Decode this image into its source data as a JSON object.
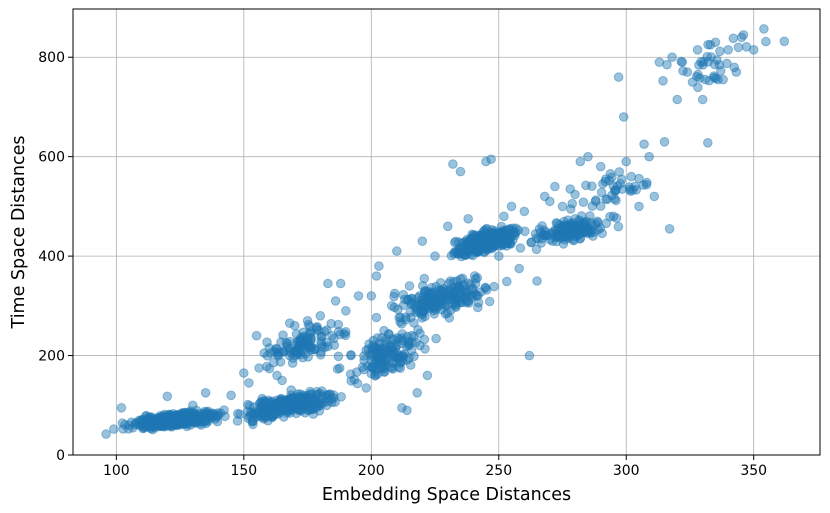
{
  "chart_data": {
    "type": "scatter",
    "title": "",
    "xlabel": "Embedding Space Distances",
    "ylabel": "Time Space Distances",
    "xlim": [
      83,
      376
    ],
    "ylim": [
      0,
      897
    ],
    "xticks": [
      "100",
      "150",
      "200",
      "250",
      "300",
      "350"
    ],
    "yticks": [
      "0",
      "200",
      "400",
      "600",
      "800"
    ],
    "grid": true,
    "legend": "none",
    "point_color": "#1f77b4",
    "point_alpha": 0.45,
    "clusters": [
      {
        "x_range": [
          96,
          150
        ],
        "y_range": [
          40,
          100
        ],
        "count": 420
      },
      {
        "x_range": [
          140,
          195
        ],
        "y_range": [
          50,
          150
        ],
        "count": 330
      },
      {
        "x_range": [
          150,
          200
        ],
        "y_range": [
          150,
          300
        ],
        "count": 110
      },
      {
        "x_range": [
          180,
          230
        ],
        "y_range": [
          100,
          300
        ],
        "count": 150
      },
      {
        "x_range": [
          195,
          260
        ],
        "y_range": [
          230,
          400
        ],
        "count": 200
      },
      {
        "x_range": [
          225,
          265
        ],
        "y_range": [
          380,
          480
        ],
        "count": 330
      },
      {
        "x_range": [
          255,
          300
        ],
        "y_range": [
          400,
          500
        ],
        "count": 150
      },
      {
        "x_range": [
          270,
          320
        ],
        "y_range": [
          450,
          620
        ],
        "count": 40
      },
      {
        "x_range": [
          300,
          362
        ],
        "y_range": [
          700,
          860
        ],
        "count": 30
      }
    ],
    "points": [
      {
        "x": 96,
        "y": 42
      },
      {
        "x": 99,
        "y": 52
      },
      {
        "x": 102,
        "y": 95
      },
      {
        "x": 105,
        "y": 60
      },
      {
        "x": 110,
        "y": 70
      },
      {
        "x": 115,
        "y": 55
      },
      {
        "x": 120,
        "y": 118
      },
      {
        "x": 125,
        "y": 65
      },
      {
        "x": 130,
        "y": 100
      },
      {
        "x": 135,
        "y": 125
      },
      {
        "x": 140,
        "y": 80
      },
      {
        "x": 145,
        "y": 120
      },
      {
        "x": 150,
        "y": 165
      },
      {
        "x": 152,
        "y": 145
      },
      {
        "x": 155,
        "y": 240
      },
      {
        "x": 156,
        "y": 175
      },
      {
        "x": 158,
        "y": 205
      },
      {
        "x": 160,
        "y": 215
      },
      {
        "x": 163,
        "y": 160
      },
      {
        "x": 165,
        "y": 150
      },
      {
        "x": 168,
        "y": 265
      },
      {
        "x": 170,
        "y": 260
      },
      {
        "x": 172,
        "y": 230
      },
      {
        "x": 175,
        "y": 270
      },
      {
        "x": 180,
        "y": 280
      },
      {
        "x": 183,
        "y": 345
      },
      {
        "x": 186,
        "y": 310
      },
      {
        "x": 188,
        "y": 345
      },
      {
        "x": 190,
        "y": 290
      },
      {
        "x": 192,
        "y": 200
      },
      {
        "x": 195,
        "y": 320
      },
      {
        "x": 198,
        "y": 135
      },
      {
        "x": 200,
        "y": 320
      },
      {
        "x": 202,
        "y": 360
      },
      {
        "x": 203,
        "y": 380
      },
      {
        "x": 205,
        "y": 250
      },
      {
        "x": 208,
        "y": 300
      },
      {
        "x": 210,
        "y": 410
      },
      {
        "x": 212,
        "y": 95
      },
      {
        "x": 214,
        "y": 90
      },
      {
        "x": 215,
        "y": 340
      },
      {
        "x": 218,
        "y": 125
      },
      {
        "x": 220,
        "y": 430
      },
      {
        "x": 222,
        "y": 160
      },
      {
        "x": 225,
        "y": 400
      },
      {
        "x": 228,
        "y": 330
      },
      {
        "x": 230,
        "y": 460
      },
      {
        "x": 232,
        "y": 585
      },
      {
        "x": 235,
        "y": 570
      },
      {
        "x": 238,
        "y": 475
      },
      {
        "x": 240,
        "y": 420
      },
      {
        "x": 242,
        "y": 435
      },
      {
        "x": 245,
        "y": 590
      },
      {
        "x": 247,
        "y": 595
      },
      {
        "x": 250,
        "y": 400
      },
      {
        "x": 252,
        "y": 480
      },
      {
        "x": 255,
        "y": 500
      },
      {
        "x": 258,
        "y": 375
      },
      {
        "x": 260,
        "y": 490
      },
      {
        "x": 262,
        "y": 200
      },
      {
        "x": 265,
        "y": 350
      },
      {
        "x": 268,
        "y": 520
      },
      {
        "x": 270,
        "y": 510
      },
      {
        "x": 272,
        "y": 540
      },
      {
        "x": 275,
        "y": 500
      },
      {
        "x": 278,
        "y": 535
      },
      {
        "x": 280,
        "y": 475
      },
      {
        "x": 282,
        "y": 590
      },
      {
        "x": 285,
        "y": 600
      },
      {
        "x": 288,
        "y": 510
      },
      {
        "x": 290,
        "y": 580
      },
      {
        "x": 292,
        "y": 555
      },
      {
        "x": 295,
        "y": 480
      },
      {
        "x": 297,
        "y": 760
      },
      {
        "x": 299,
        "y": 680
      },
      {
        "x": 300,
        "y": 590
      },
      {
        "x": 302,
        "y": 560
      },
      {
        "x": 305,
        "y": 500
      },
      {
        "x": 307,
        "y": 625
      },
      {
        "x": 309,
        "y": 600
      },
      {
        "x": 311,
        "y": 520
      },
      {
        "x": 313,
        "y": 790
      },
      {
        "x": 315,
        "y": 630
      },
      {
        "x": 316,
        "y": 785
      },
      {
        "x": 317,
        "y": 455
      },
      {
        "x": 318,
        "y": 800
      },
      {
        "x": 320,
        "y": 715
      },
      {
        "x": 322,
        "y": 790
      },
      {
        "x": 324,
        "y": 770
      },
      {
        "x": 326,
        "y": 750
      },
      {
        "x": 328,
        "y": 815
      },
      {
        "x": 330,
        "y": 715
      },
      {
        "x": 331,
        "y": 755
      },
      {
        "x": 332,
        "y": 628
      },
      {
        "x": 333,
        "y": 825
      },
      {
        "x": 335,
        "y": 830
      },
      {
        "x": 336,
        "y": 755
      },
      {
        "x": 338,
        "y": 755
      },
      {
        "x": 340,
        "y": 815
      },
      {
        "x": 342,
        "y": 838
      },
      {
        "x": 344,
        "y": 820
      },
      {
        "x": 346,
        "y": 845
      },
      {
        "x": 350,
        "y": 815
      },
      {
        "x": 354,
        "y": 857
      },
      {
        "x": 362,
        "y": 832
      }
    ]
  }
}
